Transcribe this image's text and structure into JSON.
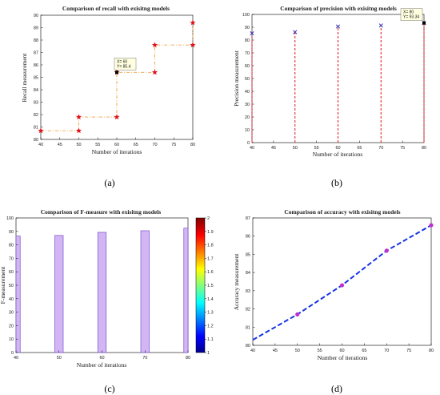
{
  "captions": [
    "(a)",
    "(b)",
    "(c)",
    "(d)"
  ],
  "colorbar": {
    "ticks": [
      "1",
      "1.1",
      "1.2",
      "1.3",
      "1.4",
      "1.5",
      "1.6",
      "1.7",
      "1.8",
      "1.9",
      "2"
    ]
  },
  "chart_data": [
    {
      "type": "line",
      "title": "Comparison of recall with exisitng models",
      "xlabel": "Number of iterations",
      "ylabel": "Recall measurement",
      "xlim": [
        40,
        80
      ],
      "ylim": [
        80,
        90
      ],
      "xticks": [
        40,
        45,
        50,
        55,
        60,
        65,
        70,
        75,
        80
      ],
      "yticks": [
        80,
        81,
        82,
        83,
        84,
        85,
        86,
        87,
        88,
        89,
        90
      ],
      "step": "stairs",
      "x": [
        40,
        50,
        50,
        60,
        60,
        70,
        70,
        80,
        80
      ],
      "y": [
        80.7,
        80.7,
        81.8,
        81.8,
        85.4,
        85.4,
        87.6,
        87.6,
        89.4
      ],
      "datatip": {
        "x": 60,
        "y": 85.4,
        "lines": [
          "X= 60",
          "Y= 85.4"
        ]
      },
      "colors": {
        "line": "#f0a040",
        "marker": "#e0101a"
      }
    },
    {
      "type": "stem",
      "title": "Comparison of precision with exisitng models",
      "xlabel": "Number of iterations",
      "ylabel": "Precision measurement",
      "xlim": [
        40,
        80
      ],
      "ylim": [
        0,
        100
      ],
      "xticks": [
        40,
        45,
        50,
        55,
        60,
        65,
        70,
        75,
        80
      ],
      "yticks": [
        0,
        10,
        20,
        30,
        40,
        50,
        60,
        70,
        80,
        90,
        100
      ],
      "x": [
        40,
        50,
        60,
        70,
        80
      ],
      "y": [
        85.3,
        86.2,
        90.6,
        91.4,
        93.34
      ],
      "datatip": {
        "x": 80,
        "y": 93.34,
        "lines": [
          "X= 80",
          "Y= 93.34"
        ]
      },
      "colors": {
        "stem": "#e8141e",
        "marker": "#3a2fb0"
      }
    },
    {
      "type": "bar",
      "title": "Comparison of F-measure with exisitng models",
      "xlabel": "Number of iterations",
      "ylabel": "F-measurement",
      "xlim": [
        40,
        80
      ],
      "ylim": [
        0,
        100
      ],
      "xticks": [
        40,
        50,
        60,
        70,
        80
      ],
      "yticks": [
        0,
        10,
        20,
        30,
        40,
        50,
        60,
        70,
        80,
        90,
        100
      ],
      "x": [
        40,
        50,
        60,
        70,
        80
      ],
      "values": [
        86.5,
        87.0,
        89.3,
        90.5,
        92.4
      ],
      "colors": {
        "bar": "#d2b6f4",
        "edge": "#7b4fcf"
      }
    },
    {
      "type": "line",
      "title": "Comparison of accuracy with exisitng models",
      "xlabel": "Number of iterations",
      "ylabel": "Accuracy measurement",
      "xlim": [
        40,
        80
      ],
      "ylim": [
        80,
        87
      ],
      "xticks": [
        40,
        45,
        50,
        55,
        60,
        65,
        70,
        75,
        80
      ],
      "yticks": [
        80,
        81,
        82,
        83,
        84,
        85,
        86,
        87
      ],
      "x": [
        40,
        50,
        60,
        70,
        80
      ],
      "y": [
        80.3,
        81.7,
        83.3,
        85.2,
        86.6
      ],
      "colors": {
        "line": "#1433e6",
        "marker": "#c030d0"
      }
    }
  ]
}
